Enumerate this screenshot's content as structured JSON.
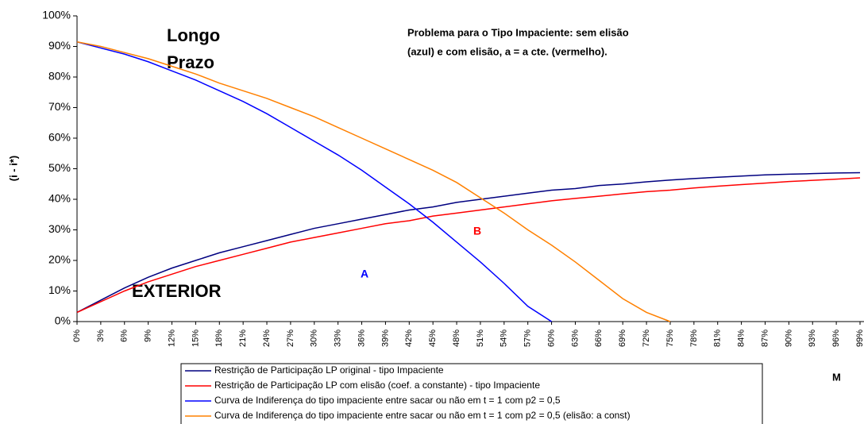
{
  "chart_data": {
    "type": "line",
    "note_lines": [
      "Problema para o Tipo Impaciente: sem elisão",
      "(azul) e com elisão, a = a cte. (vermelho)."
    ],
    "annotations": [
      "Longo",
      "Prazo",
      "EXTERIOR",
      "A",
      "B"
    ],
    "y_label": "(i - i*)",
    "x_label": "M",
    "x": [
      0,
      3,
      6,
      9,
      12,
      15,
      18,
      21,
      24,
      27,
      30,
      33,
      36,
      39,
      42,
      45,
      48,
      51,
      54,
      57,
      60,
      63,
      66,
      69,
      72,
      75,
      78,
      81,
      84,
      87,
      90,
      93,
      96,
      99
    ],
    "series": [
      {
        "name": "Restrição de Participação LP original - tipo Impaciente",
        "color": "#000080",
        "values": [
          3,
          7,
          11,
          14.5,
          17.5,
          20,
          22.5,
          24.5,
          26.5,
          28.5,
          30.5,
          32,
          33.5,
          35,
          36.5,
          37.5,
          39,
          40,
          41,
          42,
          43,
          43.5,
          44.5,
          45,
          45.7,
          46.3,
          46.8,
          47.2,
          47.6,
          48,
          48.2,
          48.4,
          48.6,
          48.7
        ]
      },
      {
        "name": "Restrição de Participação LP com elisão (coef. a constante) - tipo Impaciente",
        "color": "#ff0000",
        "values": [
          3,
          6.5,
          10,
          13,
          15.5,
          18,
          20,
          22,
          24,
          26,
          27.5,
          29,
          30.5,
          32,
          33,
          34.5,
          35.5,
          36.5,
          37.5,
          38.5,
          39.5,
          40.3,
          41,
          41.8,
          42.5,
          43,
          43.7,
          44.3,
          44.8,
          45.3,
          45.8,
          46.2,
          46.6,
          47
        ]
      },
      {
        "name": "Curva de Indiferença do tipo impaciente entre sacar ou não em t = 1 com p2 = 0,5",
        "color": "#0000ff",
        "values": [
          91.5,
          89.5,
          87.5,
          85,
          82,
          79,
          75.5,
          72,
          68,
          63.5,
          59,
          54.5,
          49.5,
          44,
          38.5,
          32.5,
          26,
          19.5,
          12.5,
          5,
          0,
          null,
          null,
          null,
          null,
          null,
          null,
          null,
          null,
          null,
          null,
          null,
          null,
          null
        ]
      },
      {
        "name": "Curva de Indiferença do tipo impaciente entre sacar ou não em t = 1 com p2 = 0,5 (elisão: a const)",
        "color": "#ff8000",
        "values": [
          91.5,
          90,
          88,
          86,
          83.5,
          81,
          78,
          75.5,
          73,
          70,
          67,
          63.5,
          60,
          56.5,
          53,
          49.5,
          45.5,
          40.5,
          35.5,
          30,
          25,
          19.5,
          13.5,
          7.5,
          3,
          0,
          null,
          null,
          null,
          null,
          null,
          null,
          null,
          null
        ]
      }
    ],
    "xlim": [
      0,
      99
    ],
    "xticks": [
      {
        "value": 0,
        "label": "0%"
      },
      {
        "value": 3,
        "label": "3%"
      },
      {
        "value": 6,
        "label": "6%"
      },
      {
        "value": 9,
        "label": "9%"
      },
      {
        "value": 12,
        "label": "12%"
      },
      {
        "value": 15,
        "label": "15%"
      },
      {
        "value": 18,
        "label": "18%"
      },
      {
        "value": 21,
        "label": "21%"
      },
      {
        "value": 24,
        "label": "24%"
      },
      {
        "value": 27,
        "label": "27%"
      },
      {
        "value": 30,
        "label": "30%"
      },
      {
        "value": 33,
        "label": "33%"
      },
      {
        "value": 36,
        "label": "36%"
      },
      {
        "value": 39,
        "label": "39%"
      },
      {
        "value": 42,
        "label": "42%"
      },
      {
        "value": 45,
        "label": "45%"
      },
      {
        "value": 48,
        "label": "48%"
      },
      {
        "value": 51,
        "label": "51%"
      },
      {
        "value": 54,
        "label": "54%"
      },
      {
        "value": 57,
        "label": "57%"
      },
      {
        "value": 60,
        "label": "60%"
      },
      {
        "value": 63,
        "label": "63%"
      },
      {
        "value": 66,
        "label": "66%"
      },
      {
        "value": 69,
        "label": "69%"
      },
      {
        "value": 72,
        "label": "72%"
      },
      {
        "value": 75,
        "label": "75%"
      },
      {
        "value": 78,
        "label": "78%"
      },
      {
        "value": 81,
        "label": "81%"
      },
      {
        "value": 84,
        "label": "84%"
      },
      {
        "value": 87,
        "label": "87%"
      },
      {
        "value": 90,
        "label": "90%"
      },
      {
        "value": 93,
        "label": "93%"
      },
      {
        "value": 96,
        "label": "96%"
      },
      {
        "value": 99,
        "label": "99%"
      }
    ],
    "ylim": [
      0,
      100
    ],
    "yticks": [
      {
        "value": 0,
        "label": "0%"
      },
      {
        "value": 10,
        "label": "10%"
      },
      {
        "value": 20,
        "label": "20%"
      },
      {
        "value": 30,
        "label": "30%"
      },
      {
        "value": 40,
        "label": "40%"
      },
      {
        "value": 50,
        "label": "50%"
      },
      {
        "value": 60,
        "label": "60%"
      },
      {
        "value": 70,
        "label": "70%"
      },
      {
        "value": 80,
        "label": "80%"
      },
      {
        "value": 90,
        "label": "90%"
      },
      {
        "value": 100,
        "label": "100%"
      }
    ],
    "grid": false
  }
}
